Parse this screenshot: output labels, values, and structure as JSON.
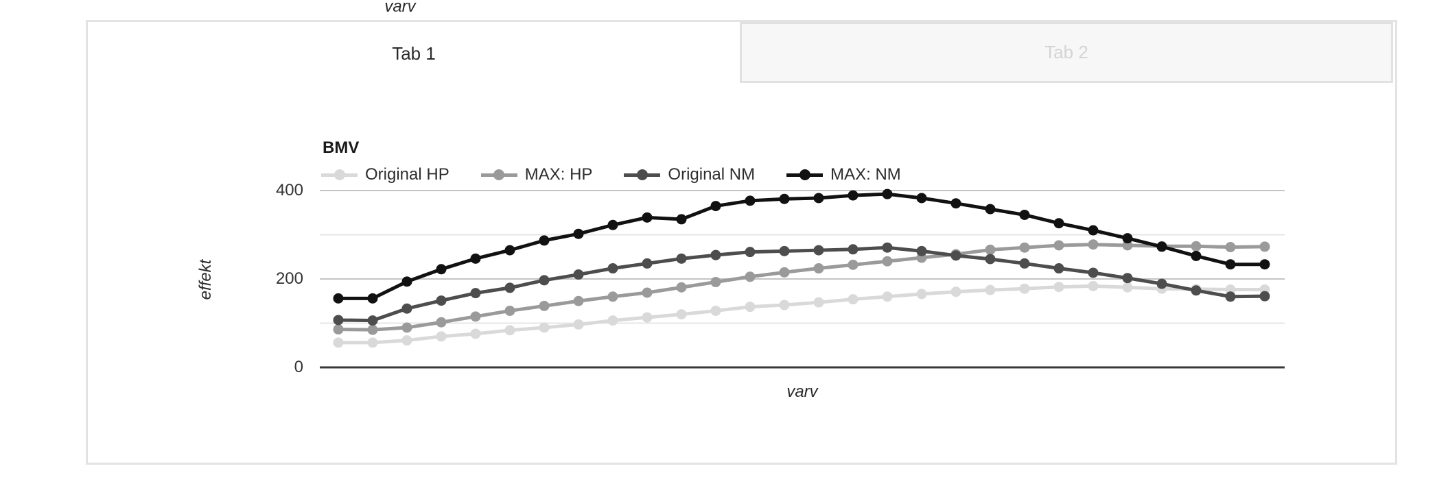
{
  "page": {
    "top_axis_label": "varv"
  },
  "tabs": [
    {
      "label": "Tab 1",
      "active": true
    },
    {
      "label": "Tab 2",
      "active": false
    }
  ],
  "colors": {
    "card_border": "#e3e3e3",
    "inactive_tab_bg": "#f7f7f7",
    "inactive_tab_text": "#d4d4d4",
    "gridline": "#e6e6e6",
    "labeled_gridline": "#c4c4c4",
    "zero_axis": "#383838",
    "series_original_hp": "#d9d9d9",
    "series_max_hp": "#9a9a9a",
    "series_original_nm": "#4d4d4d",
    "series_max_nm": "#111111"
  },
  "chart_data": {
    "type": "line",
    "title": "BMV",
    "xlabel": "varv",
    "ylabel": "effekt",
    "yticks": [
      0,
      200,
      400
    ],
    "gridline_values": [
      100,
      200,
      300,
      400
    ],
    "ylim": [
      0,
      440
    ],
    "x_tick_labels_visible": false,
    "n_points": 28,
    "legend_position": "top",
    "marker": "circle",
    "series": [
      {
        "name": "Original HP",
        "color": "#d9d9d9",
        "values": [
          56,
          56,
          61,
          70,
          76,
          84,
          90,
          97,
          106,
          113,
          120,
          128,
          137,
          141,
          147,
          154,
          160,
          166,
          171,
          175,
          178,
          182,
          184,
          181,
          178,
          177,
          176,
          176
        ]
      },
      {
        "name": "MAX: HP",
        "color": "#9a9a9a",
        "values": [
          86,
          85,
          90,
          102,
          115,
          128,
          139,
          150,
          160,
          169,
          181,
          193,
          205,
          215,
          224,
          232,
          240,
          248,
          256,
          266,
          271,
          276,
          278,
          276,
          274,
          274,
          272,
          273
        ]
      },
      {
        "name": "Original NM",
        "color": "#4d4d4d",
        "values": [
          107,
          106,
          133,
          151,
          168,
          180,
          197,
          210,
          224,
          235,
          246,
          254,
          261,
          263,
          265,
          267,
          271,
          263,
          253,
          245,
          235,
          224,
          214,
          202,
          189,
          174,
          160,
          161
        ]
      },
      {
        "name": "MAX: NM",
        "color": "#111111",
        "values": [
          156,
          156,
          194,
          222,
          246,
          265,
          287,
          302,
          322,
          339,
          335,
          365,
          377,
          381,
          383,
          389,
          392,
          383,
          371,
          358,
          345,
          326,
          310,
          292,
          273,
          252,
          233,
          233
        ]
      }
    ]
  }
}
